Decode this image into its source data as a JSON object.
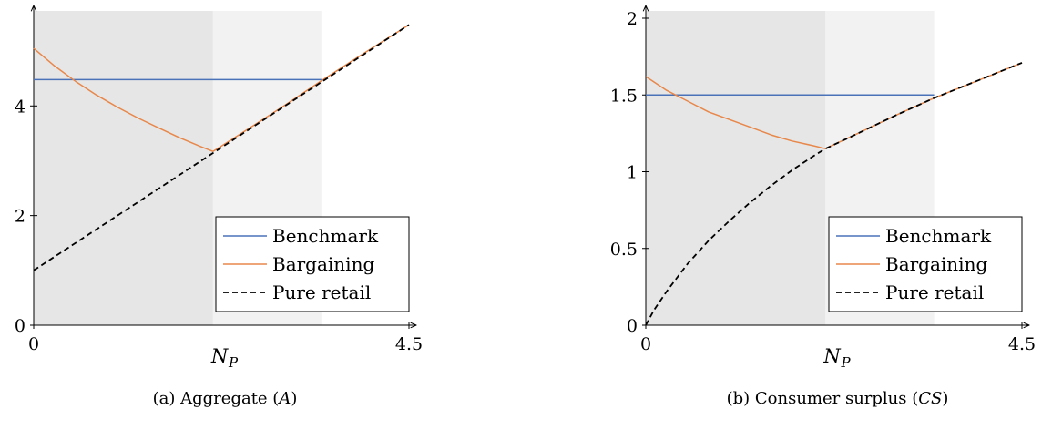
{
  "chart_data": [
    {
      "type": "line",
      "caption_prefix": "(a) Aggregate (",
      "caption_var": "A",
      "caption_suffix": ")",
      "xlabel_main": "N",
      "xlabel_sub": "P",
      "xlim": [
        0,
        4.5
      ],
      "ylim": [
        0,
        5.6
      ],
      "xticks": [
        "0",
        "4.5"
      ],
      "yticks": [
        {
          "value": 0,
          "label": "0"
        },
        {
          "value": 2,
          "label": "2"
        },
        {
          "value": 4,
          "label": "4"
        }
      ],
      "shaded_regions": [
        {
          "x0": 0,
          "x1": 2.15,
          "color": "#e6e6e6"
        },
        {
          "x0": 2.15,
          "x1": 3.45,
          "color": "#f2f2f2"
        }
      ],
      "series": [
        {
          "name": "Benchmark",
          "color": "#4a72b8",
          "dash": false,
          "x": [
            0,
            3.45
          ],
          "y": [
            4.48,
            4.48
          ]
        },
        {
          "name": "Bargaining",
          "color": "#e8874a",
          "dash": false,
          "x": [
            0,
            0.25,
            0.5,
            0.75,
            1.0,
            1.25,
            1.5,
            1.75,
            2.0,
            2.15,
            2.5,
            3.0,
            3.45,
            4.0,
            4.5
          ],
          "y": [
            5.05,
            4.73,
            4.45,
            4.2,
            3.98,
            3.78,
            3.6,
            3.42,
            3.26,
            3.17,
            3.51,
            4.0,
            4.46,
            5.0,
            5.48
          ]
        },
        {
          "name": "Pure retail",
          "color": "#000000",
          "dash": true,
          "x": [
            0,
            4.5
          ],
          "y": [
            1.0,
            5.48
          ]
        }
      ]
    },
    {
      "type": "line",
      "caption_prefix": "(b) Consumer surplus (",
      "caption_var": "CS",
      "caption_suffix": ")",
      "xlabel_main": "N",
      "xlabel_sub": "P",
      "xlim": [
        0,
        4.5
      ],
      "ylim": [
        0,
        2.0
      ],
      "xticks": [
        "0",
        "4.5"
      ],
      "yticks": [
        {
          "value": 0,
          "label": "0"
        },
        {
          "value": 0.5,
          "label": "0.5"
        },
        {
          "value": 1,
          "label": "1"
        },
        {
          "value": 1.5,
          "label": "1.5"
        },
        {
          "value": 2,
          "label": "2"
        }
      ],
      "shaded_regions": [
        {
          "x0": 0,
          "x1": 2.15,
          "color": "#e6e6e6"
        },
        {
          "x0": 2.15,
          "x1": 3.45,
          "color": "#f2f2f2"
        }
      ],
      "series": [
        {
          "name": "Benchmark",
          "color": "#4a72b8",
          "dash": false,
          "x": [
            0,
            3.45
          ],
          "y": [
            1.5,
            1.5
          ]
        },
        {
          "name": "Bargaining",
          "color": "#e8874a",
          "dash": false,
          "x": [
            0,
            0.25,
            0.5,
            0.75,
            1.0,
            1.25,
            1.5,
            1.75,
            2.0,
            2.15,
            2.5,
            3.0,
            3.45,
            4.0,
            4.5
          ],
          "y": [
            1.62,
            1.53,
            1.46,
            1.39,
            1.34,
            1.29,
            1.24,
            1.2,
            1.17,
            1.15,
            1.24,
            1.37,
            1.48,
            1.6,
            1.71
          ]
        },
        {
          "name": "Pure retail",
          "color": "#000000",
          "dash": true,
          "x": [
            0,
            0.1,
            0.25,
            0.5,
            0.75,
            1.0,
            1.25,
            1.5,
            1.75,
            2.0,
            2.15,
            2.5,
            3.0,
            3.45,
            4.0,
            4.5
          ],
          "y": [
            0,
            0.1,
            0.22,
            0.4,
            0.55,
            0.68,
            0.8,
            0.91,
            1.01,
            1.1,
            1.15,
            1.24,
            1.37,
            1.48,
            1.6,
            1.71
          ]
        }
      ]
    }
  ]
}
